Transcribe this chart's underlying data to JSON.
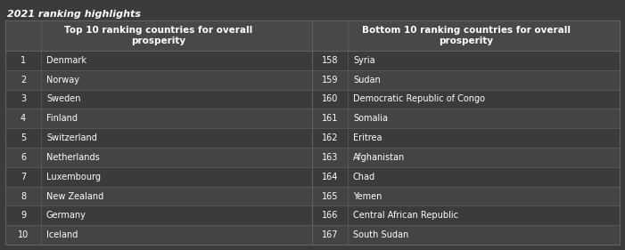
{
  "title": "2021 ranking highlights",
  "bg_color": "#3b3b3b",
  "header_bg_color": "#484848",
  "row_bg_odd": "#3b3b3b",
  "row_bg_even": "#444444",
  "text_color": "#ffffff",
  "header_text_color": "#ffffff",
  "title_color": "#ffffff",
  "grid_color": "#606060",
  "col_header_left": "Top 10 ranking countries for overall\nprosperity",
  "col_header_right": "Bottom 10 ranking countries for overall\nprosperity",
  "top10_ranks": [
    1,
    2,
    3,
    4,
    5,
    6,
    7,
    8,
    9,
    10
  ],
  "top10_countries": [
    "Denmark",
    "Norway",
    "Sweden",
    "Finland",
    "Switzerland",
    "Netherlands",
    "Luxembourg",
    "New Zealand",
    "Germany",
    "Iceland"
  ],
  "bottom10_ranks": [
    158,
    159,
    160,
    161,
    162,
    163,
    164,
    165,
    166,
    167
  ],
  "bottom10_countries": [
    "Syria",
    "Sudan",
    "Democratic Republic of Congo",
    "Somalia",
    "Eritrea",
    "Afghanistan",
    "Chad",
    "Yemen",
    "Central African Republic",
    "South Sudan"
  ]
}
